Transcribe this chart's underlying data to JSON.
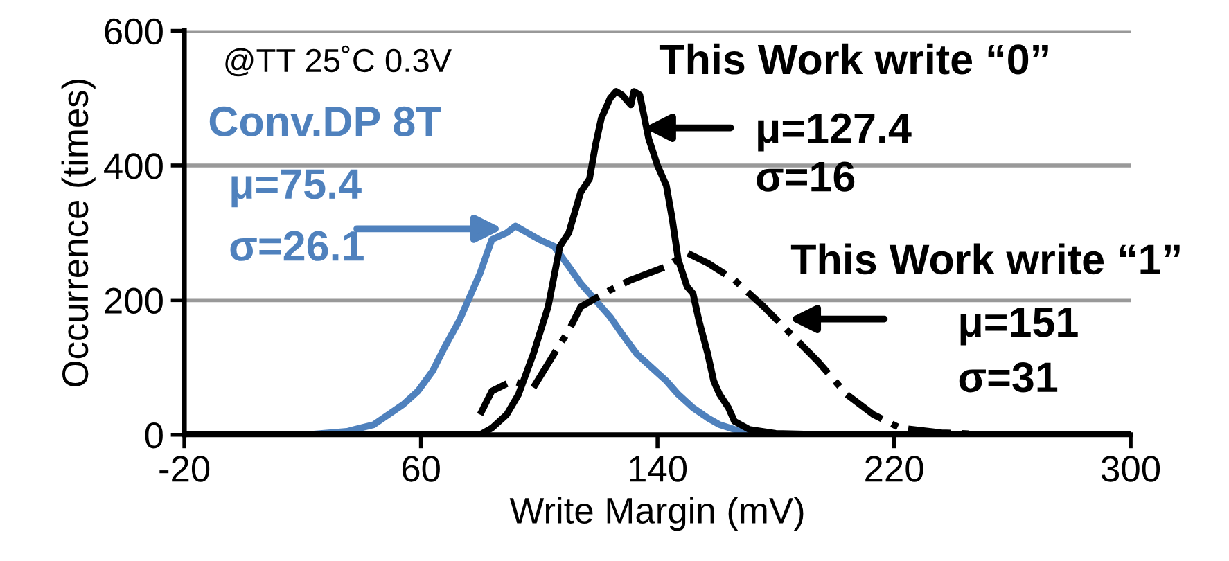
{
  "chart_data": {
    "type": "line",
    "xlabel": "Write Margin (mV)",
    "ylabel": "Occurrence (times)",
    "xlim": [
      -20,
      300
    ],
    "xticks": [
      -20,
      60,
      140,
      220,
      300
    ],
    "ylim": [
      0,
      600
    ],
    "yticks": [
      0,
      200,
      400,
      600
    ],
    "grid": "y",
    "series": [
      {
        "name": "Conv.DP 8T",
        "color": "#4f81bd",
        "line_style": "solid",
        "x": [
          -20,
          21,
          35,
          44,
          54,
          59,
          64,
          68,
          73,
          77,
          80,
          84,
          89,
          92,
          96,
          100,
          105,
          110,
          114,
          119,
          124,
          128,
          133,
          138,
          143,
          147,
          152,
          157,
          161,
          168,
          176,
          300
        ],
        "values": [
          0,
          0,
          5,
          15,
          45,
          65,
          95,
          130,
          170,
          210,
          240,
          290,
          300,
          310,
          300,
          290,
          280,
          250,
          225,
          200,
          175,
          150,
          120,
          100,
          80,
          60,
          40,
          25,
          15,
          5,
          0,
          0
        ]
      },
      {
        "name": "This Work write “0”",
        "color": "#000000",
        "line_style": "solid",
        "x": [
          -20,
          80,
          84,
          89,
          93,
          98,
          103,
          107,
          110,
          114,
          117,
          119,
          121,
          124,
          126,
          128,
          131,
          132,
          134,
          137,
          140,
          143,
          145,
          147,
          150,
          152,
          154,
          157,
          159,
          161,
          164,
          166,
          171,
          180,
          199,
          300
        ],
        "values": [
          0,
          0,
          10,
          30,
          60,
          120,
          190,
          280,
          300,
          360,
          380,
          430,
          470,
          500,
          510,
          505,
          490,
          510,
          505,
          440,
          400,
          370,
          320,
          260,
          220,
          210,
          170,
          120,
          80,
          60,
          40,
          20,
          8,
          2,
          0,
          0
        ]
      },
      {
        "name": "This Work write “1”",
        "color": "#000000",
        "line_style": "dashdot",
        "x": [
          80,
          84,
          91,
          98,
          105,
          110,
          114,
          124,
          131,
          143,
          150,
          157,
          166,
          176,
          185,
          194,
          204,
          213,
          222,
          236,
          255,
          300
        ],
        "values": [
          30,
          65,
          80,
          70,
          120,
          155,
          190,
          215,
          230,
          250,
          270,
          255,
          230,
          190,
          150,
          110,
          60,
          30,
          10,
          3,
          0,
          0
        ]
      }
    ],
    "annotations": [
      "@TT 25˚C 0.3V",
      "μ=75.4",
      "σ=26.1",
      "μ=127.4",
      "σ=16",
      "μ=151",
      "σ=31"
    ]
  }
}
